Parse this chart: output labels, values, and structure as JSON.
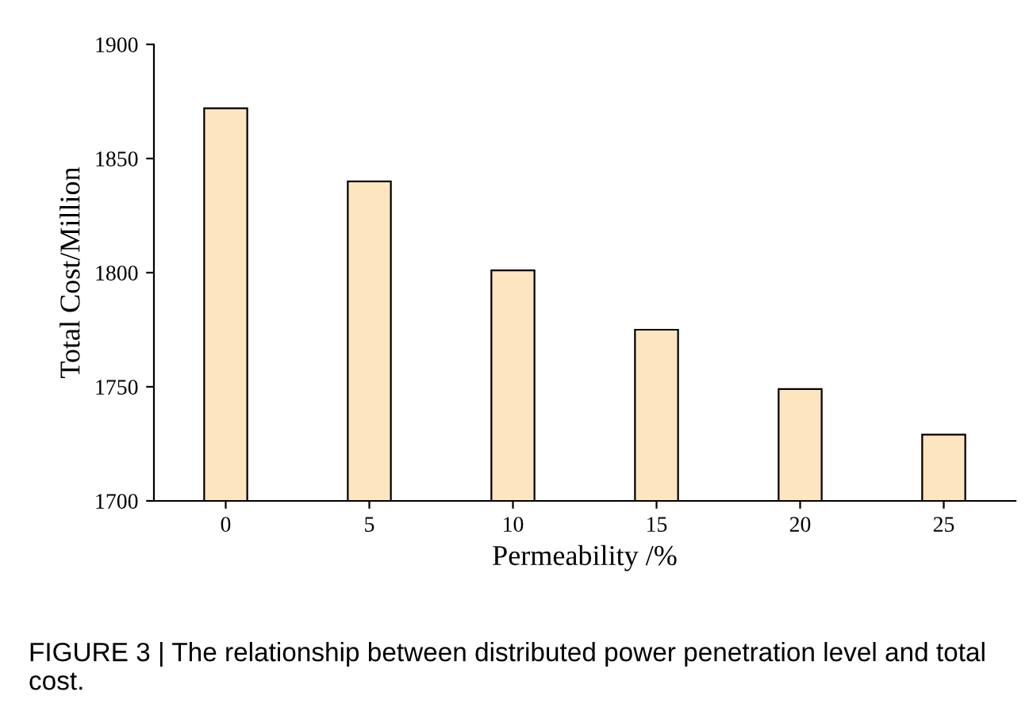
{
  "chart_data": {
    "type": "bar",
    "xlabel": "Permeability /%",
    "ylabel": "Total Cost/Million",
    "categories": [
      "0",
      "5",
      "10",
      "15",
      "20",
      "25"
    ],
    "values": [
      1872,
      1840,
      1801,
      1775,
      1749,
      1729
    ],
    "color": "#fde5c0",
    "ylim": [
      1700,
      1900
    ],
    "yticks": [
      1700,
      1750,
      1800,
      1850,
      1900
    ],
    "grid": false,
    "legend": false,
    "annotations": [
      "FIGURE 3 | The relationship between distributed power penetration level and total cost."
    ]
  }
}
